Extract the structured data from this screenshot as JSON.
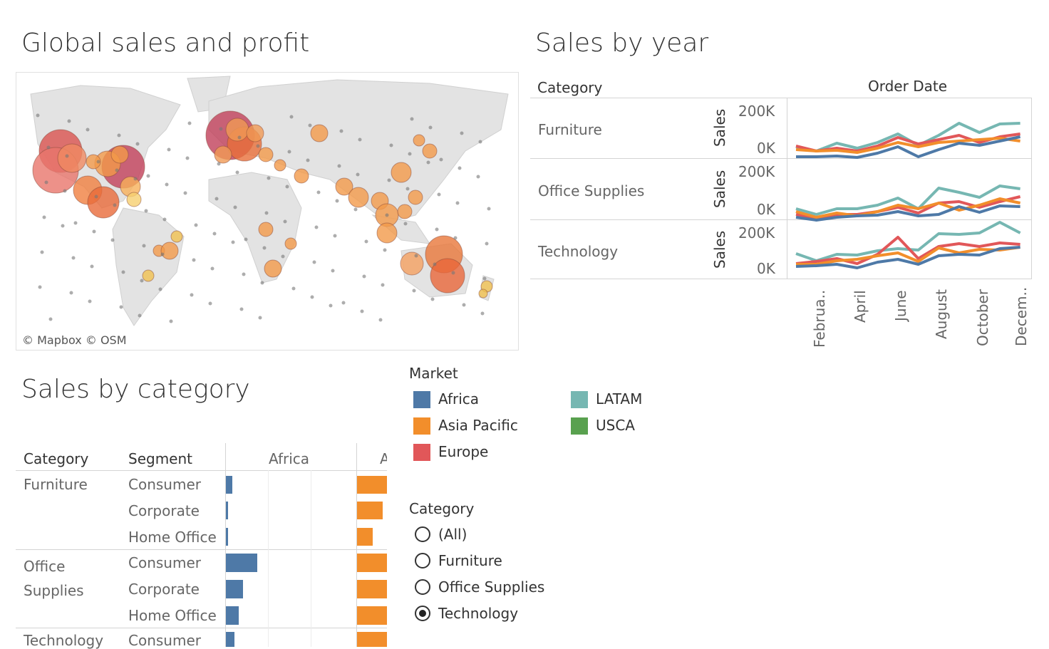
{
  "map_section": {
    "title": "Global sales and profit",
    "attribution": "© Mapbox  © OSM"
  },
  "year_section": {
    "title": "Sales by year",
    "category_header": "Category",
    "order_date_header": "Order Date",
    "measure_label": "Sales",
    "rows": [
      {
        "category": "Furniture",
        "tick_top": "200K",
        "tick_bottom": "0K"
      },
      {
        "category": "Office Supplies",
        "tick_top": "200K",
        "tick_bottom": "0K"
      },
      {
        "category": "Technology",
        "tick_top": "200K",
        "tick_bottom": "0K"
      }
    ],
    "months": [
      "Februa..",
      "April",
      "June",
      "August",
      "October",
      "Decem.."
    ]
  },
  "category_section": {
    "title": "Sales by category",
    "col_category": "Category",
    "col_segment": "Segment",
    "col_market_1": "Africa",
    "col_market_2": "A",
    "groups": [
      {
        "category": "Furniture",
        "segments": [
          "Consumer",
          "Corporate",
          "Home Office"
        ]
      },
      {
        "category": "Office\nSupplies",
        "segments": [
          "Consumer",
          "Corporate",
          "Home Office"
        ]
      },
      {
        "category": "Technology",
        "segments": [
          "Consumer"
        ]
      }
    ]
  },
  "legend": {
    "title": "Market",
    "items": [
      {
        "label": "Africa",
        "color": "#4e79a7"
      },
      {
        "label": "Asia Pacific",
        "color": "#f28e2b"
      },
      {
        "label": "Europe",
        "color": "#e15759"
      },
      {
        "label": "LATAM",
        "color": "#76b7b2"
      },
      {
        "label": "USCA",
        "color": "#59a14f"
      }
    ]
  },
  "category_filter": {
    "title": "Category",
    "options": [
      {
        "label": "(All)",
        "selected": false
      },
      {
        "label": "Furniture",
        "selected": false
      },
      {
        "label": "Office Supplies",
        "selected": false
      },
      {
        "label": "Technology",
        "selected": true
      }
    ]
  }
}
